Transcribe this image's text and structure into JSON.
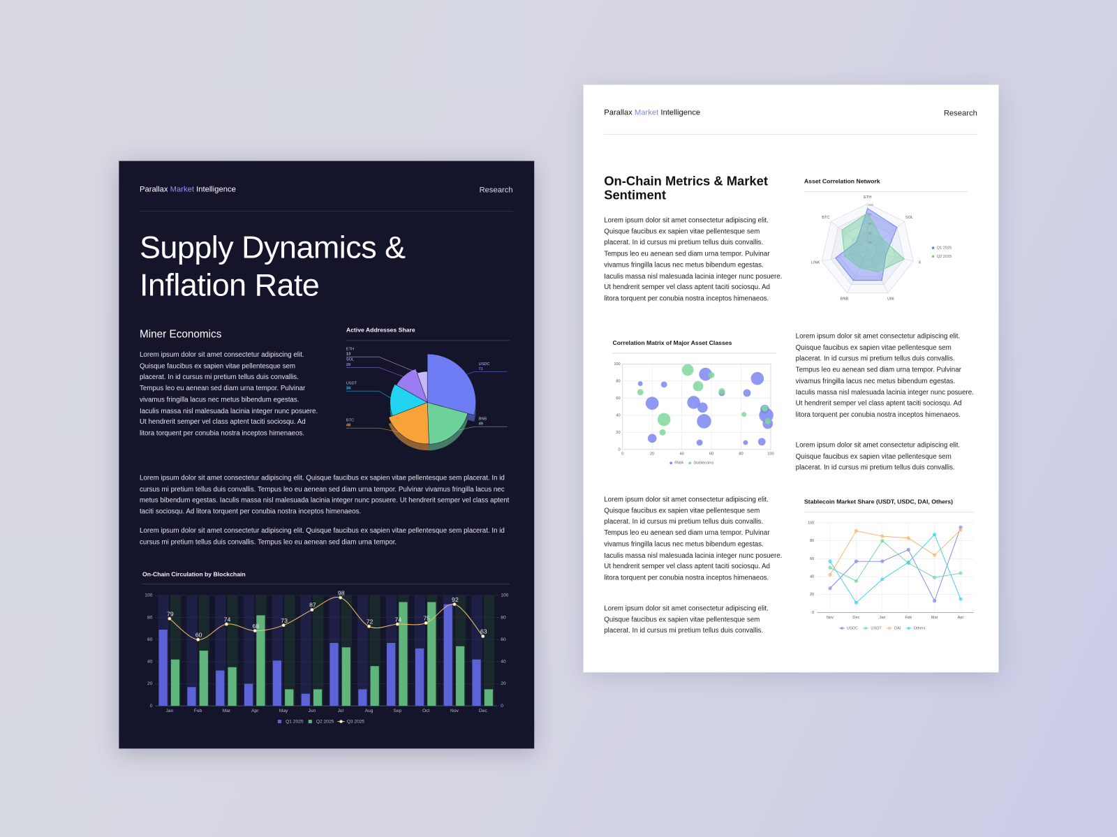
{
  "pages": [
    {
      "header": {
        "brand": [
          "Parallax",
          "Market",
          "Intelligence"
        ],
        "section": "Research"
      },
      "title": "Supply Dynamics & Inflation Rate",
      "subtitle": "Miner Economics",
      "paragraphs": [
        "Lorem ipsum dolor sit amet consectetur adipiscing elit. Quisque faucibus ex sapien vitae pellentesque sem placerat. In id cursus mi pretium tellus duis convallis. Tempus leo eu aenean sed diam urna tempor. Pulvinar vivamus fringilla lacus nec metus bibendum egestas. Iaculis massa nisl malesuada lacinia integer nunc posuere. Ut hendrerit semper vel class aptent taciti sociosqu. Ad litora torquent per conubia nostra inceptos himenaeos.",
        "Lorem ipsum dolor sit amet consectetur adipiscing elit. Quisque faucibus ex sapien vitae pellentesque sem placerat. In id cursus mi pretium tellus duis convallis. Tempus leo eu aenean sed diam urna tempor. Pulvinar vivamus fringilla lacus nec metus bibendum egestas. Iaculis massa nisl malesuada lacinia integer nunc posuere. Ut hendrerit semper vel class aptent taciti sociosqu. Ad litora torquent per conubia nostra inceptos himenaeos.",
        "Lorem ipsum dolor sit amet consectetur adipiscing elit. Quisque faucibus ex sapien vitae pellentesque sem placerat. In id cursus mi pretium tellus duis convallis. Tempus leo eu aenean sed diam urna tempor."
      ]
    },
    {
      "header": {
        "brand": [
          "Parallax",
          "Market",
          "Intelligence"
        ],
        "section": "Research"
      },
      "title": "On-Chain Metrics & Market Sentiment",
      "paragraphs": [
        "Lorem ipsum dolor sit amet consectetur adipiscing elit. Quisque faucibus ex sapien vitae pellentesque sem placerat. In id cursus mi pretium tellus duis convallis. Tempus leo eu aenean sed diam urna tempor. Pulvinar vivamus fringilla lacus nec metus bibendum egestas. Iaculis massa nisl malesuada lacinia integer nunc posuere. Ut hendrerit semper vel class aptent taciti sociosqu. Ad litora torquent per conubia nostra inceptos himenaeos.",
        "Lorem ipsum dolor sit amet consectetur adipiscing elit. Quisque faucibus ex sapien vitae pellentesque sem placerat. In id cursus mi pretium tellus duis convallis. Tempus leo eu aenean sed diam urna tempor. Pulvinar vivamus fringilla lacus nec metus bibendum egestas. Iaculis massa nisl malesuada lacinia integer nunc posuere. Ut hendrerit semper vel class aptent taciti sociosqu. Ad litora torquent per conubia nostra inceptos himenaeos.",
        "Lorem ipsum dolor sit amet consectetur adipiscing elit. Quisque faucibus ex sapien vitae pellentesque sem placerat. In id cursus mi pretium tellus duis convallis.",
        "Lorem ipsum dolor sit amet consectetur adipiscing elit. Quisque faucibus ex sapien vitae pellentesque sem placerat. In id cursus mi pretium tellus duis convallis. Tempus leo eu aenean sed diam urna tempor. Pulvinar vivamus fringilla lacus nec metus bibendum egestas. Iaculis massa nisl malesuada lacinia integer nunc posuere. Ut hendrerit semper vel class aptent taciti sociosqu. Ad litora torquent per conubia nostra inceptos himenaeos.",
        "Lorem ipsum dolor sit amet consectetur adipiscing elit. Quisque faucibus ex sapien vitae pellentesque sem placerat. In id cursus mi pretium tellus duis convallis."
      ]
    }
  ],
  "chart_data": [
    {
      "type": "pie",
      "title": "Active Addresses Share",
      "categories": [
        "USDC",
        "BNB",
        "BTC",
        "USDT",
        "SOL",
        "ETH"
      ],
      "values": [
        71,
        49,
        48,
        34,
        28,
        13
      ],
      "colors": [
        "#6f7df5",
        "#6dd19a",
        "#f7a33a",
        "#22d3f2",
        "#9b7cf2",
        "#c4b8f6"
      ]
    },
    {
      "type": "bar",
      "title": "On-Chain Circulation by Blockchain",
      "categories": [
        "Jan",
        "Feb",
        "Mar",
        "Apr",
        "May",
        "Jun",
        "Jul",
        "Aug",
        "Sep",
        "Oct",
        "Nov",
        "Dec"
      ],
      "series": [
        {
          "name": "Q1 2025",
          "color": "#5b63d6",
          "values": [
            69,
            17,
            32,
            20,
            41,
            11,
            57,
            15,
            57,
            52,
            92,
            42
          ]
        },
        {
          "name": "Q2 2025",
          "color": "#5fb57c",
          "values": [
            42,
            50,
            35,
            82,
            15,
            15,
            53,
            36,
            94,
            94,
            54,
            15
          ]
        },
        {
          "name": "Q3 2025",
          "type": "line",
          "axis": "y2",
          "color": "#f5c16c",
          "values": [
            79,
            60,
            74,
            68,
            73,
            87,
            98,
            72,
            74,
            75,
            92,
            63
          ]
        }
      ],
      "ylim": [
        0,
        100
      ],
      "yticks": [
        0,
        20,
        40,
        60,
        80,
        100
      ],
      "y2lim": [
        0,
        100
      ],
      "y2ticks": [
        0,
        20,
        40,
        60,
        80,
        100
      ],
      "grid": true
    },
    {
      "type": "radar",
      "title": "Asset Correlation Network",
      "categories": [
        "ETH",
        "SOL",
        "X",
        "UNI",
        "BNB",
        "LINK",
        "BTC"
      ],
      "series": [
        {
          "name": "Q1 2025",
          "color": "#6f7df5",
          "values": [
            90,
            80,
            40,
            70,
            70,
            70,
            30
          ]
        },
        {
          "name": "Q2 2025",
          "color": "#6fcf97",
          "values": [
            80,
            40,
            80,
            50,
            40,
            50,
            70
          ]
        }
      ],
      "rlim": [
        0,
        100
      ],
      "rticks": [
        20,
        40,
        60,
        80,
        100
      ]
    },
    {
      "type": "scatter",
      "title": "Correlation Matrix of Major Asset Classes",
      "series": [
        {
          "name": "RWA",
          "color": "#7b86f0",
          "x": [
            12,
            28,
            20,
            20,
            48,
            54,
            55,
            56,
            67,
            52,
            83,
            84,
            91,
            96,
            97,
            94,
            98
          ],
          "y": [
            77,
            76,
            54,
            13,
            55,
            49,
            33,
            88,
            66,
            8,
            8,
            66,
            83,
            47,
            40,
            9,
            30
          ],
          "sizes": [
            2,
            3,
            8,
            5,
            8,
            6,
            9,
            8,
            3,
            3,
            2,
            4,
            8,
            5,
            9,
            4,
            6
          ]
        },
        {
          "name": "Stablecoins",
          "color": "#7fd89b",
          "x": [
            12,
            28,
            27,
            44,
            51,
            60,
            67,
            82,
            96,
            98
          ],
          "y": [
            67,
            35,
            20,
            93,
            74,
            87,
            68,
            41,
            48,
            33
          ],
          "sizes": [
            3,
            8,
            3,
            7,
            6,
            3,
            3,
            2,
            3,
            3
          ]
        }
      ],
      "xlim": [
        0,
        100
      ],
      "ylim": [
        0,
        100
      ],
      "xticks": [
        0,
        20,
        40,
        60,
        80,
        100
      ],
      "yticks": [
        0,
        20,
        40,
        60,
        80,
        100
      ],
      "grid": true
    },
    {
      "type": "line",
      "title": "Stablecoin Market Share (USDT, USDC, DAI, Others)",
      "categories": [
        "Nov",
        "Dec",
        "Jan",
        "Feb",
        "Mar",
        "Apr"
      ],
      "series": [
        {
          "name": "USDC",
          "color": "#7a83ef",
          "values": [
            27,
            57,
            57,
            70,
            13,
            95
          ]
        },
        {
          "name": "USDT",
          "color": "#6fd394",
          "values": [
            50,
            35,
            80,
            55,
            39,
            44
          ]
        },
        {
          "name": "DAI",
          "color": "#f8b266",
          "values": [
            42,
            91,
            85,
            83,
            64,
            92
          ]
        },
        {
          "name": "Others",
          "color": "#35d0ef",
          "values": [
            57,
            11,
            37,
            56,
            87,
            15
          ]
        }
      ],
      "ylim": [
        0,
        100
      ],
      "yticks": [
        0,
        20,
        40,
        60,
        80,
        100
      ],
      "grid": true
    }
  ]
}
